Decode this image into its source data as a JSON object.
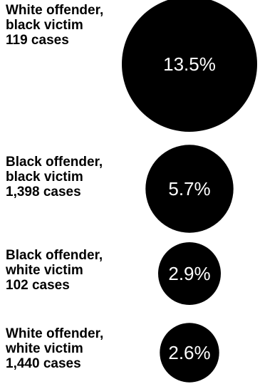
{
  "chart_data": {
    "type": "bubble",
    "value_unit": "%",
    "colors": {
      "bubble": "#000000",
      "value_text": "#ffffff",
      "label_text": "#000000"
    },
    "items": [
      {
        "offender": "White offender,",
        "victim": "black victim",
        "cases": "119 cases",
        "value": 13.5,
        "value_label": "13.5%"
      },
      {
        "offender": "Black offender,",
        "victim": "black victim",
        "cases": "1,398 cases",
        "value": 5.7,
        "value_label": "5.7%"
      },
      {
        "offender": "Black offender,",
        "victim": "white victim",
        "cases": "102 cases",
        "value": 2.9,
        "value_label": "2.9%"
      },
      {
        "offender": "White offender,",
        "victim": "white victim",
        "cases": "1,440 cases",
        "value": 2.6,
        "value_label": "2.6%"
      }
    ]
  }
}
